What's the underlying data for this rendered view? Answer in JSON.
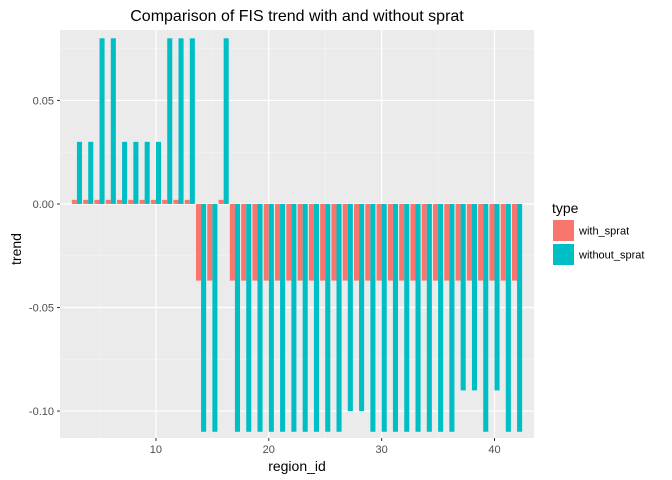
{
  "chart_data": {
    "type": "bar",
    "title": "Comparison of FIS trend with and without sprat",
    "xlabel": "region_id",
    "ylabel": "trend",
    "xlim": [
      1.5,
      43.5
    ],
    "ylim": [
      -0.113,
      0.084
    ],
    "x_ticks": [
      10,
      20,
      30,
      40
    ],
    "x_major_ticks": [
      10,
      20,
      30,
      40
    ],
    "x_minor_ticks": [
      5,
      15,
      25,
      35
    ],
    "y_ticks": [
      0.05,
      0.0,
      -0.05,
      -0.1
    ],
    "y_tick_labels": [
      "0.05",
      "0.00",
      "-0.05",
      "-0.10"
    ],
    "y_minor_ticks": [
      0.075,
      0.025,
      -0.025,
      -0.075
    ],
    "grid": true,
    "legend": {
      "title": "type",
      "position": "right"
    },
    "series": [
      {
        "name": "with_sprat",
        "color": "#F8766D",
        "x": [
          3,
          4,
          5,
          6,
          7,
          8,
          9,
          10,
          11,
          12,
          13,
          14,
          15,
          16,
          17,
          18,
          19,
          20,
          21,
          22,
          23,
          24,
          25,
          26,
          27,
          28,
          29,
          30,
          31,
          32,
          33,
          34,
          35,
          36,
          37,
          38,
          39,
          40,
          41,
          42
        ],
        "values": [
          0.002,
          0.002,
          0.002,
          0.002,
          0.002,
          0.002,
          0.002,
          0.002,
          0.002,
          0.002,
          0.002,
          -0.037,
          -0.037,
          0.002,
          -0.037,
          -0.037,
          -0.037,
          -0.037,
          -0.037,
          -0.037,
          -0.037,
          -0.037,
          -0.037,
          -0.037,
          -0.037,
          -0.037,
          -0.037,
          -0.037,
          -0.037,
          -0.037,
          -0.037,
          -0.037,
          -0.037,
          -0.037,
          -0.037,
          -0.037,
          -0.037,
          -0.037,
          -0.037,
          -0.037
        ]
      },
      {
        "name": "without_sprat",
        "color": "#00BFC4",
        "x": [
          3,
          4,
          5,
          6,
          7,
          8,
          9,
          10,
          11,
          12,
          13,
          14,
          15,
          16,
          17,
          18,
          19,
          20,
          21,
          22,
          23,
          24,
          25,
          26,
          27,
          28,
          29,
          30,
          31,
          32,
          33,
          34,
          35,
          36,
          37,
          38,
          39,
          40,
          41,
          42
        ],
        "values": [
          0.03,
          0.03,
          0.08,
          0.08,
          0.03,
          0.03,
          0.03,
          0.03,
          0.08,
          0.08,
          0.08,
          -0.11,
          -0.11,
          0.08,
          -0.11,
          -0.11,
          -0.11,
          -0.11,
          -0.11,
          -0.11,
          -0.11,
          -0.11,
          -0.11,
          -0.11,
          -0.1,
          -0.1,
          -0.11,
          -0.11,
          -0.11,
          -0.11,
          -0.11,
          -0.11,
          -0.11,
          -0.11,
          -0.09,
          -0.09,
          -0.11,
          -0.09,
          -0.11,
          -0.11
        ]
      }
    ],
    "colors": {
      "panel_background": "#EBEBEB",
      "grid_major": "#FFFFFF",
      "grid_minor": "#F4F4F4"
    }
  }
}
